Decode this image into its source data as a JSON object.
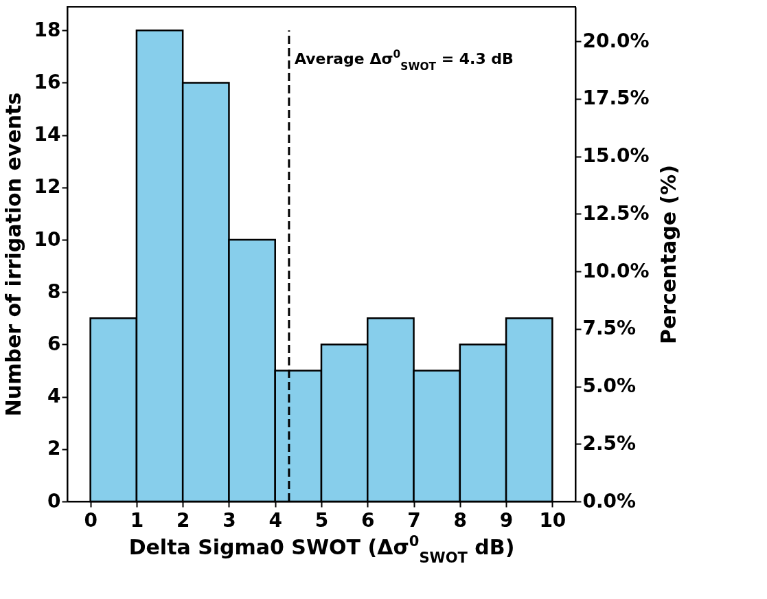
{
  "chart_data": {
    "type": "histogram",
    "xlabel": "Delta Sigma0 SWOT (Δσ$^{0}$$_{SWOT}$ dB)",
    "ylabel": "Number of irrigation events",
    "y2label": "Percentage (%)",
    "bins": [
      0,
      1,
      2,
      3,
      4,
      5,
      6,
      7,
      8,
      9,
      10
    ],
    "values": [
      7,
      18,
      16,
      10,
      5,
      6,
      7,
      5,
      6,
      7
    ],
    "color": "#87ceeb",
    "xlim": [
      -0.5,
      10.5
    ],
    "xticks": [
      0,
      1,
      2,
      3,
      4,
      5,
      6,
      7,
      8,
      9,
      10
    ],
    "ylim": [
      0,
      18.9
    ],
    "yticks": [
      0,
      2,
      4,
      6,
      8,
      10,
      12,
      14,
      16,
      18
    ],
    "y2lim": [
      0,
      21.5
    ],
    "y2ticks": [
      {
        "value": 0,
        "label": "0.0%"
      },
      {
        "value": 2.5,
        "label": "2.5%"
      },
      {
        "value": 5,
        "label": "5.0%"
      },
      {
        "value": 7.5,
        "label": "7.5%"
      },
      {
        "value": 10,
        "label": "10.0%"
      },
      {
        "value": 12.5,
        "label": "12.5%"
      },
      {
        "value": 15,
        "label": "15.0%"
      },
      {
        "value": 17.5,
        "label": "17.5%"
      },
      {
        "value": 20,
        "label": "20.0%"
      }
    ],
    "ref_lines": [
      {
        "axis": "x",
        "value": 4.3,
        "label": "Average Δσ$^{0}$$_{SWOT}$ = 4.3 dB",
        "line_style": "dashed",
        "color": "#000000"
      }
    ],
    "grid": false
  }
}
